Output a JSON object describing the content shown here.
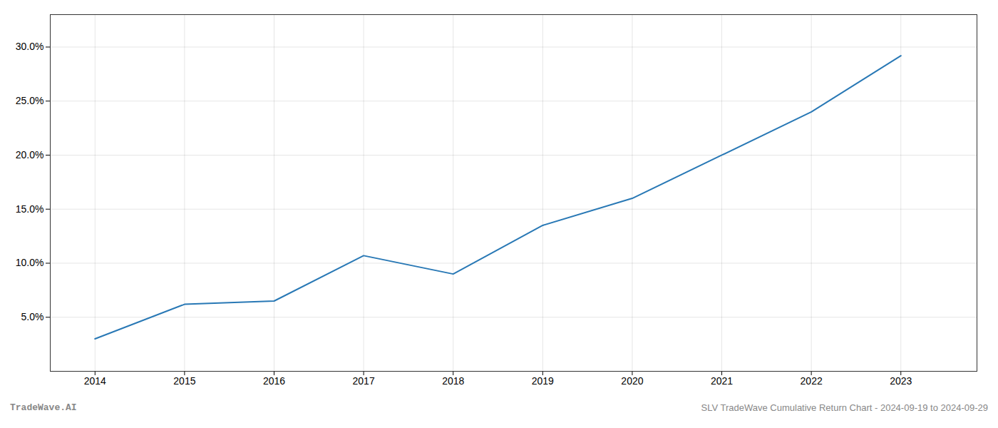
{
  "chart_data": {
    "type": "line",
    "x": [
      2014,
      2015,
      2016,
      2017,
      2018,
      2019,
      2020,
      2021,
      2022,
      2023
    ],
    "values": [
      3.0,
      6.2,
      6.5,
      10.7,
      9.0,
      13.5,
      16.0,
      20.0,
      24.0,
      29.2
    ],
    "color": "#2878b5",
    "xlim": [
      2013.5,
      2023.85
    ],
    "xticks": [
      2014,
      2015,
      2016,
      2017,
      2018,
      2019,
      2020,
      2021,
      2022,
      2023
    ],
    "ylim": [
      0,
      33
    ],
    "yticks": [
      {
        "value": 5.0,
        "label": "5.0%"
      },
      {
        "value": 10.0,
        "label": "10.0%"
      },
      {
        "value": 15.0,
        "label": "15.0%"
      },
      {
        "value": 20.0,
        "label": "20.0%"
      },
      {
        "value": 25.0,
        "label": "25.0%"
      },
      {
        "value": 30.0,
        "label": "30.0%"
      }
    ],
    "grid": true,
    "annotations": [
      "TradeWave.AI",
      "SLV TradeWave Cumulative Return Chart - 2024-09-19 to 2024-09-29"
    ]
  }
}
